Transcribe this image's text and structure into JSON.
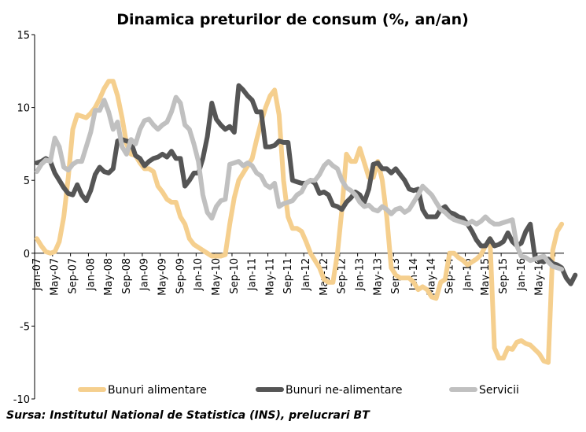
{
  "chart_data": {
    "type": "line",
    "title": "Dinamica preturilor de consum (%, an/an)",
    "ylim": [
      -10,
      15
    ],
    "yticks": [
      -10,
      -5,
      0,
      5,
      10,
      15
    ],
    "xtick_labels": [
      "Jan-07",
      "May-07",
      "Sep-07",
      "Jan-08",
      "May-08",
      "Sep-08",
      "Jan-09",
      "May-09",
      "Sep-09",
      "Jan-10",
      "May-10",
      "Sep-10",
      "Jan-11",
      "May-11",
      "Sep-11",
      "Jan-12",
      "May-12",
      "Sep-12",
      "Jan-13",
      "May-13",
      "Sep-13",
      "Jan-14",
      "May-14",
      "Sep-14",
      "Jan-15",
      "May-15",
      "Sep-15",
      "Jan-16",
      "May-16"
    ],
    "grid": false,
    "legend_position": "bottom",
    "series": [
      {
        "name": "Bunuri alimentare",
        "color": "#f5cf8e",
        "values": [
          1.0,
          0.5,
          0.1,
          0.0,
          0.1,
          0.8,
          2.5,
          5.2,
          8.5,
          9.5,
          9.4,
          9.3,
          9.6,
          10.0,
          10.6,
          11.3,
          11.8,
          11.8,
          10.8,
          9.3,
          7.5,
          6.8,
          6.7,
          6.2,
          5.8,
          5.8,
          5.6,
          4.6,
          4.2,
          3.7,
          3.5,
          3.5,
          2.5,
          2.0,
          1.0,
          0.6,
          0.4,
          0.2,
          0.0,
          -0.2,
          -0.2,
          -0.2,
          -0.1,
          2.0,
          3.8,
          5.0,
          5.5,
          6.0,
          6.5,
          7.8,
          9.0,
          10.0,
          10.8,
          11.2,
          9.5,
          5.0,
          2.5,
          1.7,
          1.7,
          1.5,
          0.8,
          0.0,
          -0.5,
          -1.0,
          -1.8,
          -2.0,
          -2.0,
          0.0,
          3.0,
          6.8,
          6.3,
          6.3,
          7.2,
          6.2,
          5.2,
          5.2,
          6.3,
          5.0,
          2.5,
          -1.0,
          -1.5,
          -1.7,
          -1.7,
          -1.7,
          -2.0,
          -2.5,
          -2.3,
          -2.5,
          -3.0,
          -3.1,
          -2.0,
          -1.8,
          0.0,
          0.0,
          -0.3,
          -0.5,
          -0.8,
          -0.6,
          -0.4,
          -0.1,
          0.5,
          1.0,
          -6.5,
          -7.2,
          -7.2,
          -6.5,
          -6.6,
          -6.1,
          -6.0,
          -6.2,
          -6.3,
          -6.6,
          -6.9,
          -7.4,
          -7.5,
          0.2,
          1.5,
          2.0
        ]
      },
      {
        "name": "Bunuri ne-alimentare",
        "color": "#555555",
        "values": [
          6.2,
          6.3,
          6.5,
          6.3,
          5.5,
          5.0,
          4.5,
          4.1,
          4.0,
          4.7,
          4.0,
          3.6,
          4.3,
          5.4,
          5.9,
          5.6,
          5.5,
          5.8,
          7.7,
          7.8,
          7.7,
          7.6,
          6.7,
          6.5,
          6.0,
          6.3,
          6.5,
          6.6,
          6.8,
          6.6,
          7.0,
          6.5,
          6.5,
          4.6,
          5.0,
          5.5,
          5.5,
          6.5,
          8.0,
          10.3,
          9.2,
          8.8,
          8.5,
          8.7,
          8.3,
          11.5,
          11.2,
          10.8,
          10.5,
          9.7,
          9.7,
          7.3,
          7.3,
          7.4,
          7.7,
          7.6,
          7.6,
          5.0,
          4.9,
          4.8,
          4.8,
          5.0,
          4.8,
          4.1,
          4.2,
          4.0,
          3.3,
          3.2,
          3.0,
          3.5,
          3.8,
          4.2,
          4.0,
          3.5,
          4.4,
          6.1,
          6.2,
          5.8,
          5.8,
          5.5,
          5.8,
          5.4,
          5.0,
          4.4,
          4.3,
          4.4,
          3.0,
          2.5,
          2.5,
          2.5,
          3.0,
          3.2,
          2.8,
          2.7,
          2.5,
          2.4,
          2.0,
          1.5,
          0.9,
          0.5,
          0.5,
          1.0,
          0.5,
          0.6,
          0.8,
          1.4,
          0.8,
          0.5,
          0.7,
          1.5,
          2.0,
          -0.2,
          -0.5,
          -0.6,
          -0.4,
          -0.7,
          -0.8,
          -1.0,
          -1.7,
          -2.1,
          -1.5
        ]
      },
      {
        "name": "Servicii",
        "color": "#c0c0c0",
        "values": [
          5.6,
          6.1,
          6.4,
          6.3,
          7.9,
          7.3,
          5.9,
          5.7,
          6.1,
          6.3,
          6.3,
          7.3,
          8.3,
          9.8,
          9.8,
          10.5,
          9.7,
          8.5,
          9.0,
          7.3,
          6.8,
          7.8,
          7.5,
          8.5,
          9.1,
          9.2,
          8.8,
          8.5,
          8.8,
          9.0,
          9.7,
          10.7,
          10.3,
          8.8,
          8.5,
          7.5,
          6.3,
          4.0,
          2.8,
          2.4,
          3.2,
          3.6,
          3.7,
          6.1,
          6.2,
          6.3,
          6.0,
          6.2,
          6.0,
          5.5,
          5.3,
          4.7,
          4.5,
          4.8,
          3.2,
          3.4,
          3.5,
          3.6,
          4.0,
          4.2,
          4.8,
          5.0,
          5.0,
          5.4,
          6.0,
          6.3,
          6.0,
          5.8,
          5.0,
          4.5,
          4.3,
          4.0,
          3.5,
          3.2,
          3.3,
          3.0,
          2.9,
          3.2,
          3.0,
          2.7,
          3.0,
          3.1,
          2.8,
          3.0,
          3.5,
          4.0,
          4.6,
          4.3,
          4.0,
          3.5,
          3.0,
          2.8,
          2.5,
          2.3,
          2.2,
          2.1,
          2.0,
          2.2,
          2.0,
          2.2,
          2.5,
          2.2,
          2.0,
          2.0,
          2.1,
          2.2,
          2.3,
          0.5,
          -0.2,
          -0.3,
          -0.5,
          -0.4,
          -0.3,
          -0.2,
          -0.6,
          -0.9,
          -1.0,
          -1.1
        ]
      }
    ]
  },
  "source_note": "Sursa: Institutul National de Statistica (INS), prelucrari BT"
}
